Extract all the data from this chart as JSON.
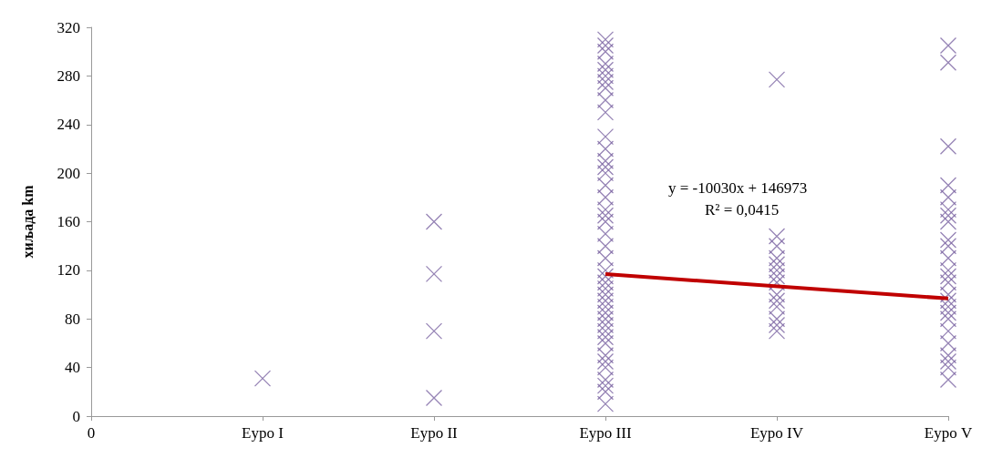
{
  "chart_data": {
    "type": "scatter",
    "ylabel": "хиљада km",
    "grid": false,
    "categories": [
      "0",
      "Еуро I",
      "Еуро II",
      "Еуро III",
      "Еуро IV",
      "Еуро V"
    ],
    "ylim": [
      0,
      320
    ],
    "yticks": [
      0,
      40,
      80,
      120,
      160,
      200,
      240,
      280,
      320
    ],
    "annotations": [
      "y = -10030x + 146973",
      "R² = 0,0415"
    ],
    "series": [
      {
        "color": "#7a64a2",
        "marker": "cross",
        "x": [
          "Еуро I",
          "Еуро II",
          "Еуро II",
          "Еуро II",
          "Еуро II",
          "Еуро III",
          "Еуро III",
          "Еуро III",
          "Еуро III",
          "Еуро III",
          "Еуро III",
          "Еуро III",
          "Еуро III",
          "Еуро III",
          "Еуро III",
          "Еуро III",
          "Еуро III",
          "Еуро III",
          "Еуро III",
          "Еуро III",
          "Еуро III",
          "Еуро III",
          "Еуро III",
          "Еуро III",
          "Еуро III",
          "Еуро III",
          "Еуро III",
          "Еуро III",
          "Еуро III",
          "Еуро III",
          "Еуро III",
          "Еуро III",
          "Еуро III",
          "Еуро III",
          "Еуро III",
          "Еуро III",
          "Еуро III",
          "Еуро III",
          "Еуро III",
          "Еуро III",
          "Еуро III",
          "Еуро III",
          "Еуро III",
          "Еуро III",
          "Еуро III",
          "Еуро III",
          "Еуро III",
          "Еуро III",
          "Еуро IV",
          "Еуро IV",
          "Еуро IV",
          "Еуро IV",
          "Еуро IV",
          "Еуро IV",
          "Еуро IV",
          "Еуро IV",
          "Еуро IV",
          "Еуро IV",
          "Еуро IV",
          "Еуро IV",
          "Еуро IV",
          "Еуро IV",
          "Еуро V",
          "Еуро V",
          "Еуро V",
          "Еуро V",
          "Еуро V",
          "Еуро V",
          "Еуро V",
          "Еуро V",
          "Еуро V",
          "Еуро V",
          "Еуро V",
          "Еуро V",
          "Еуро V",
          "Еуро V",
          "Еуро V",
          "Еуро V",
          "Еуро V",
          "Еуро V",
          "Еуро V",
          "Еуро V",
          "Еуро V",
          "Еуро V",
          "Еуро V",
          "Еуро V",
          "Еуро V"
        ],
        "values": [
          31,
          160,
          117,
          70,
          15,
          310,
          305,
          300,
          290,
          285,
          280,
          275,
          270,
          260,
          250,
          230,
          220,
          210,
          205,
          200,
          190,
          180,
          170,
          165,
          160,
          150,
          140,
          130,
          120,
          115,
          110,
          105,
          100,
          95,
          90,
          85,
          80,
          75,
          70,
          65,
          60,
          50,
          45,
          40,
          30,
          25,
          20,
          10,
          277,
          148,
          140,
          130,
          125,
          120,
          115,
          110,
          100,
          95,
          90,
          80,
          75,
          70,
          305,
          291,
          222,
          190,
          180,
          170,
          165,
          160,
          145,
          140,
          130,
          120,
          115,
          110,
          100,
          95,
          90,
          85,
          80,
          70,
          60,
          50,
          45,
          40,
          30
        ]
      },
      {
        "type": "line",
        "color": "#c00000",
        "marker": "none",
        "x": [
          "Еуро III",
          "Еуро V"
        ],
        "values": [
          116.9,
          96.8
        ]
      }
    ]
  }
}
